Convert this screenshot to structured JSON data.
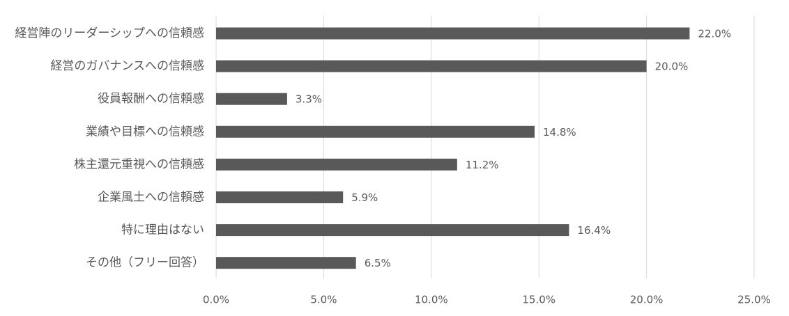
{
  "chart_data": {
    "type": "bar",
    "orientation": "horizontal",
    "categories": [
      "経営陣のリーダーシップへの信頼感",
      "経営のガバナンスへの信頼感",
      "役員報酬への信頼感",
      "業績や目標への信頼感",
      "株主還元重視への信頼感",
      "企業風土への信頼感",
      "特に理由はない",
      "その他（フリー回答）"
    ],
    "values": [
      22.0,
      20.0,
      3.3,
      14.8,
      11.2,
      5.9,
      16.4,
      6.5
    ],
    "value_labels": [
      "22.0%",
      "20.0%",
      "3.3%",
      "14.8%",
      "11.2%",
      "5.9%",
      "16.4%",
      "6.5%"
    ],
    "xlim": [
      0,
      25
    ],
    "x_ticks": [
      0,
      5,
      10,
      15,
      20,
      25
    ],
    "x_tick_labels": [
      "0.0%",
      "5.0%",
      "10.0%",
      "15.0%",
      "20.0%",
      "25.0%"
    ],
    "grid": true,
    "legend": "none",
    "bar_color": "#595959",
    "title": "",
    "xlabel": "",
    "ylabel": ""
  }
}
